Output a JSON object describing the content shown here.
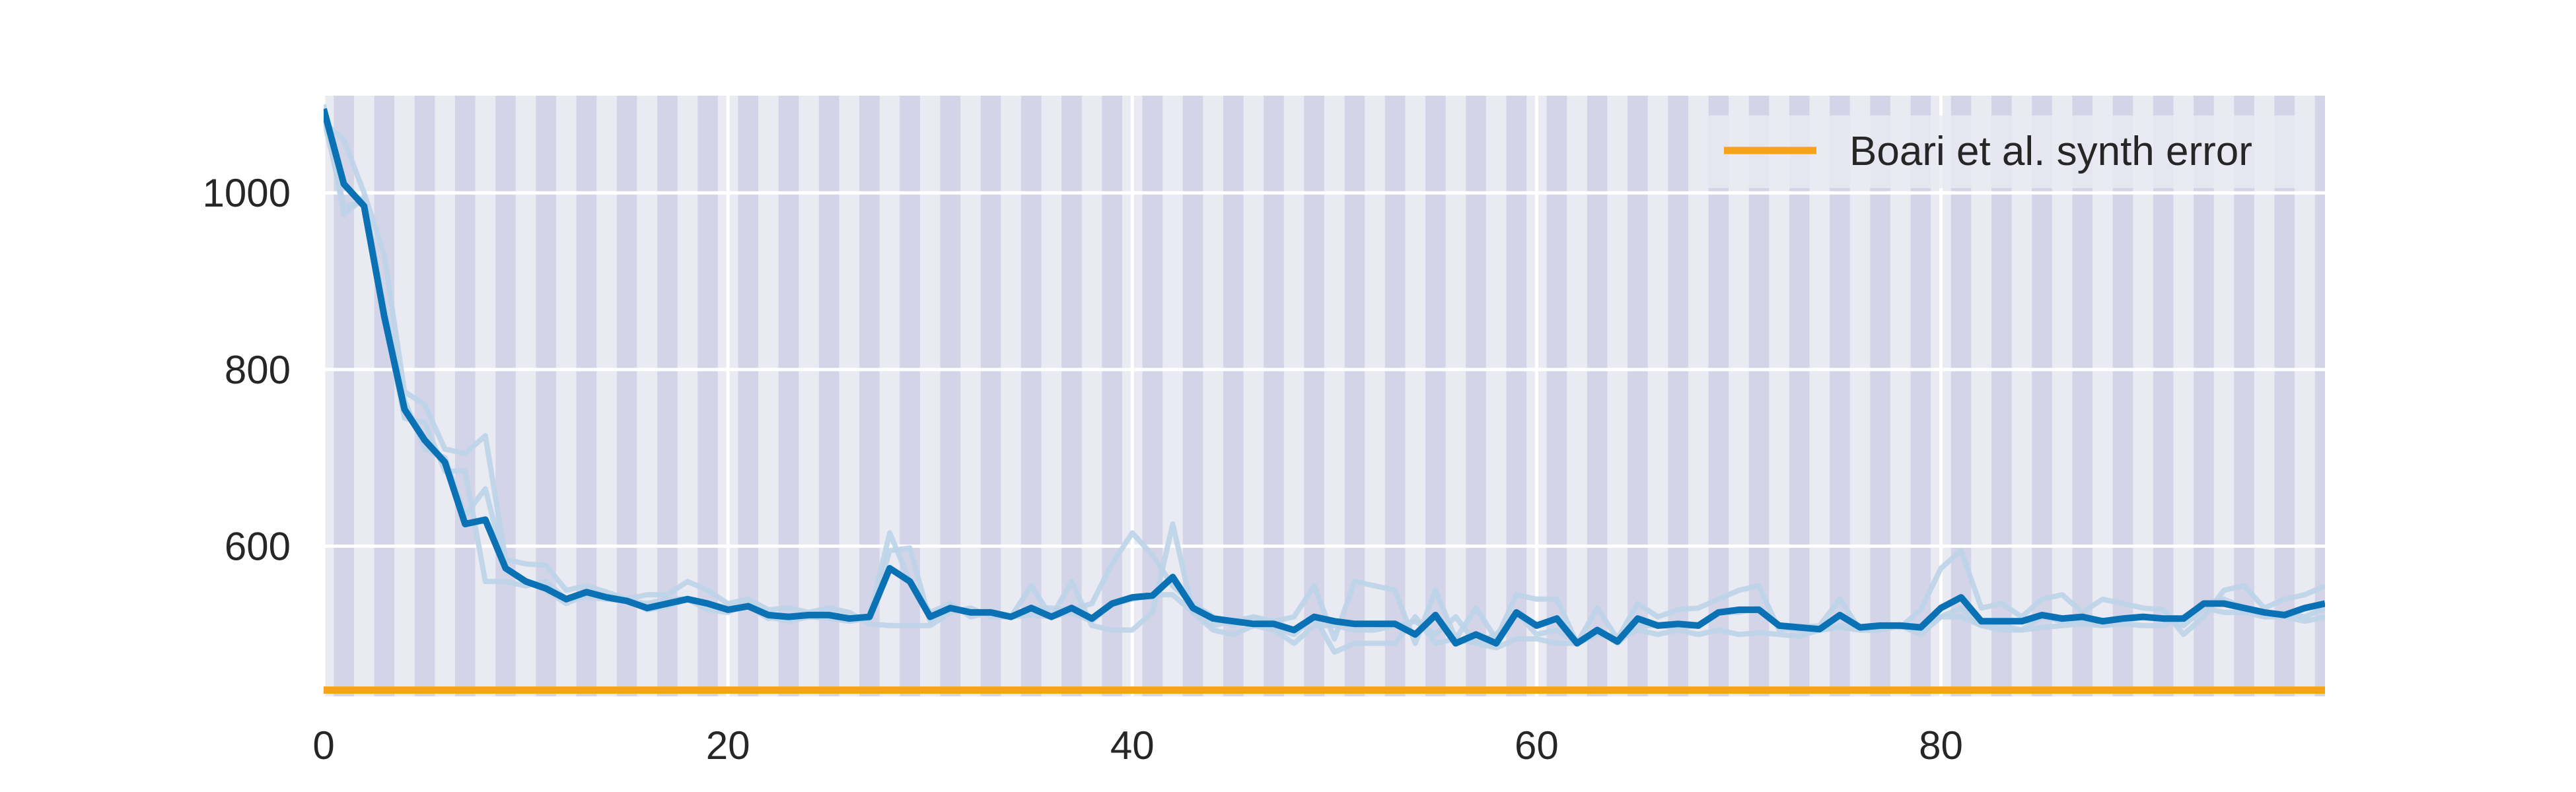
{
  "chart_data": {
    "type": "line",
    "title": "",
    "xlabel": "",
    "ylabel": "",
    "xlim": [
      0,
      99
    ],
    "ylim": [
      430,
      1110
    ],
    "xticks": [
      0,
      20,
      40,
      60,
      80
    ],
    "yticks": [
      600,
      800,
      1000
    ],
    "grid": true,
    "legend_position": "top-right",
    "background_bands": "alternating vertical bands, one per epoch",
    "colors": {
      "background": "#eaeaf2",
      "band": "#d4d4e9",
      "grid": "#ffffff",
      "series": "#0a72b4",
      "faint_series": "#bcd4e8",
      "reference": "#f5a31a"
    },
    "series": [
      {
        "name": "",
        "style": "faint",
        "x": [
          0,
          1,
          2,
          3,
          4,
          5,
          6,
          7,
          8,
          9,
          10,
          11,
          12,
          13,
          14,
          15,
          16,
          17,
          18,
          19,
          20,
          21,
          22,
          23,
          24,
          25,
          26,
          27,
          28,
          29,
          30,
          31,
          32,
          33,
          34,
          35,
          36,
          37,
          38,
          39,
          40,
          41,
          42,
          43,
          44,
          45,
          46,
          47,
          48,
          49,
          50,
          51,
          52,
          53,
          54,
          55,
          56,
          57,
          58,
          59,
          60,
          61,
          62,
          63,
          64,
          65,
          66,
          67,
          68,
          69,
          70,
          71,
          72,
          73,
          74,
          75,
          76,
          77,
          78,
          79,
          80,
          81,
          82,
          83,
          84,
          85,
          86,
          87,
          88,
          89,
          90,
          91,
          92,
          93,
          94,
          95,
          96,
          97,
          98,
          99
        ],
        "values": [
          1085,
          985,
          990,
          860,
          745,
          740,
          685,
          685,
          560,
          560,
          555,
          560,
          540,
          542,
          540,
          538,
          535,
          540,
          540,
          535,
          530,
          532,
          518,
          522,
          520,
          520,
          515,
          518,
          595,
          598,
          515,
          530,
          525,
          525,
          520,
          522,
          520,
          525,
          515,
          535,
          540,
          545,
          545,
          525,
          505,
          500,
          510,
          505,
          490,
          510,
          510,
          505,
          505,
          510,
          515,
          500,
          520,
          490,
          500,
          525,
          500,
          505,
          490,
          505,
          490,
          510,
          510,
          508,
          510,
          525,
          525,
          530,
          510,
          505,
          505,
          510,
          505,
          505,
          510,
          508,
          520,
          530,
          510,
          510,
          505,
          520,
          515,
          515,
          510,
          512,
          510,
          510,
          520,
          535,
          540,
          530,
          520,
          525,
          520,
          530
        ]
      },
      {
        "name": "",
        "style": "faint",
        "x": [
          0,
          1,
          2,
          3,
          4,
          5,
          6,
          7,
          8,
          9,
          10,
          11,
          12,
          13,
          14,
          15,
          16,
          17,
          18,
          19,
          20,
          21,
          22,
          23,
          24,
          25,
          26,
          27,
          28,
          29,
          30,
          31,
          32,
          33,
          34,
          35,
          36,
          37,
          38,
          39,
          40,
          41,
          42,
          43,
          44,
          45,
          46,
          47,
          48,
          49,
          50,
          51,
          52,
          53,
          54,
          55,
          56,
          57,
          58,
          59,
          60,
          61,
          62,
          63,
          64,
          65,
          66,
          67,
          68,
          69,
          70,
          71,
          72,
          73,
          74,
          75,
          76,
          77,
          78,
          79,
          80,
          81,
          82,
          83,
          84,
          85,
          86,
          87,
          88,
          89,
          90,
          91,
          92,
          93,
          94,
          95,
          96,
          97,
          98,
          99
        ],
        "values": [
          1080,
          1060,
          1000,
          930,
          775,
          760,
          710,
          705,
          725,
          585,
          580,
          578,
          550,
          555,
          548,
          540,
          545,
          545,
          560,
          550,
          535,
          540,
          528,
          530,
          525,
          530,
          525,
          512,
          510,
          510,
          510,
          525,
          530,
          520,
          520,
          555,
          520,
          560,
          510,
          505,
          505,
          525,
          625,
          525,
          510,
          515,
          520,
          515,
          520,
          555,
          495,
          560,
          555,
          550,
          490,
          550,
          495,
          530,
          495,
          545,
          540,
          540,
          490,
          530,
          495,
          535,
          520,
          528,
          530,
          540,
          550,
          555,
          505,
          508,
          510,
          540,
          505,
          510,
          508,
          528,
          575,
          595,
          530,
          535,
          520,
          540,
          545,
          525,
          540,
          535,
          530,
          528,
          500,
          520,
          550,
          555,
          530,
          540,
          545,
          555
        ]
      },
      {
        "name": "",
        "style": "faint",
        "x": [
          0,
          1,
          2,
          3,
          4,
          5,
          6,
          7,
          8,
          9,
          10,
          11,
          12,
          13,
          14,
          15,
          16,
          17,
          18,
          19,
          20,
          21,
          22,
          23,
          24,
          25,
          26,
          27,
          28,
          29,
          30,
          31,
          32,
          33,
          34,
          35,
          36,
          37,
          38,
          39,
          40,
          41,
          42,
          43,
          44,
          45,
          46,
          47,
          48,
          49,
          50,
          51,
          52,
          53,
          54,
          55,
          56,
          57,
          58,
          59,
          60,
          61,
          62,
          63,
          64,
          65,
          66,
          67,
          68,
          69,
          70,
          71,
          72,
          73,
          74,
          75,
          76,
          77,
          78,
          79,
          80,
          81,
          82,
          83,
          84,
          85,
          86,
          87,
          88,
          89,
          90,
          91,
          92,
          93,
          94,
          95,
          96,
          97,
          98,
          99
        ],
        "values": [
          1100,
          975,
          995,
          870,
          765,
          710,
          700,
          635,
          665,
          575,
          560,
          550,
          535,
          545,
          542,
          540,
          528,
          532,
          540,
          528,
          525,
          535,
          520,
          515,
          520,
          518,
          515,
          520,
          615,
          560,
          525,
          535,
          520,
          525,
          520,
          530,
          530,
          528,
          535,
          580,
          615,
          590,
          555,
          535,
          520,
          510,
          520,
          508,
          500,
          520,
          480,
          490,
          490,
          490,
          520,
          490,
          495,
          490,
          485,
          495,
          495,
          490,
          490,
          500,
          495,
          505,
          500,
          505,
          500,
          505,
          500,
          502,
          500,
          498,
          505,
          508,
          505,
          505,
          510,
          500,
          520,
          520,
          510,
          505,
          505,
          508,
          510,
          512,
          510,
          515,
          520,
          518,
          510,
          530,
          525,
          525,
          520,
          520,
          515,
          520
        ]
      },
      {
        "name": "",
        "style": "main",
        "x": [
          0,
          1,
          2,
          3,
          4,
          5,
          6,
          7,
          8,
          9,
          10,
          11,
          12,
          13,
          14,
          15,
          16,
          17,
          18,
          19,
          20,
          21,
          22,
          23,
          24,
          25,
          26,
          27,
          28,
          29,
          30,
          31,
          32,
          33,
          34,
          35,
          36,
          37,
          38,
          39,
          40,
          41,
          42,
          43,
          44,
          45,
          46,
          47,
          48,
          49,
          50,
          51,
          52,
          53,
          54,
          55,
          56,
          57,
          58,
          59,
          60,
          61,
          62,
          63,
          64,
          65,
          66,
          67,
          68,
          69,
          70,
          71,
          72,
          73,
          74,
          75,
          76,
          77,
          78,
          79,
          80,
          81,
          82,
          83,
          84,
          85,
          86,
          87,
          88,
          89,
          90,
          91,
          92,
          93,
          94,
          95,
          96,
          97,
          98,
          99
        ],
        "values": [
          1095,
          1010,
          985,
          860,
          755,
          720,
          695,
          625,
          630,
          575,
          560,
          552,
          540,
          548,
          542,
          538,
          530,
          535,
          540,
          535,
          528,
          532,
          522,
          520,
          522,
          522,
          518,
          520,
          575,
          560,
          520,
          530,
          525,
          525,
          520,
          530,
          520,
          530,
          518,
          535,
          542,
          544,
          565,
          530,
          518,
          515,
          512,
          512,
          505,
          520,
          515,
          512,
          512,
          512,
          500,
          522,
          490,
          500,
          490,
          525,
          510,
          518,
          490,
          505,
          492,
          518,
          510,
          512,
          510,
          525,
          528,
          528,
          510,
          508,
          506,
          522,
          508,
          510,
          510,
          508,
          530,
          542,
          515,
          515,
          515,
          522,
          518,
          520,
          515,
          518,
          520,
          518,
          518,
          535,
          535,
          530,
          525,
          522,
          530,
          535
        ]
      },
      {
        "name": "Boari et al. synth error",
        "style": "reference",
        "x": [
          0,
          99
        ],
        "values": [
          437,
          437
        ]
      }
    ],
    "legend": [
      {
        "label": "Boari et al. synth error",
        "series": "Boari et al. synth error"
      }
    ]
  }
}
